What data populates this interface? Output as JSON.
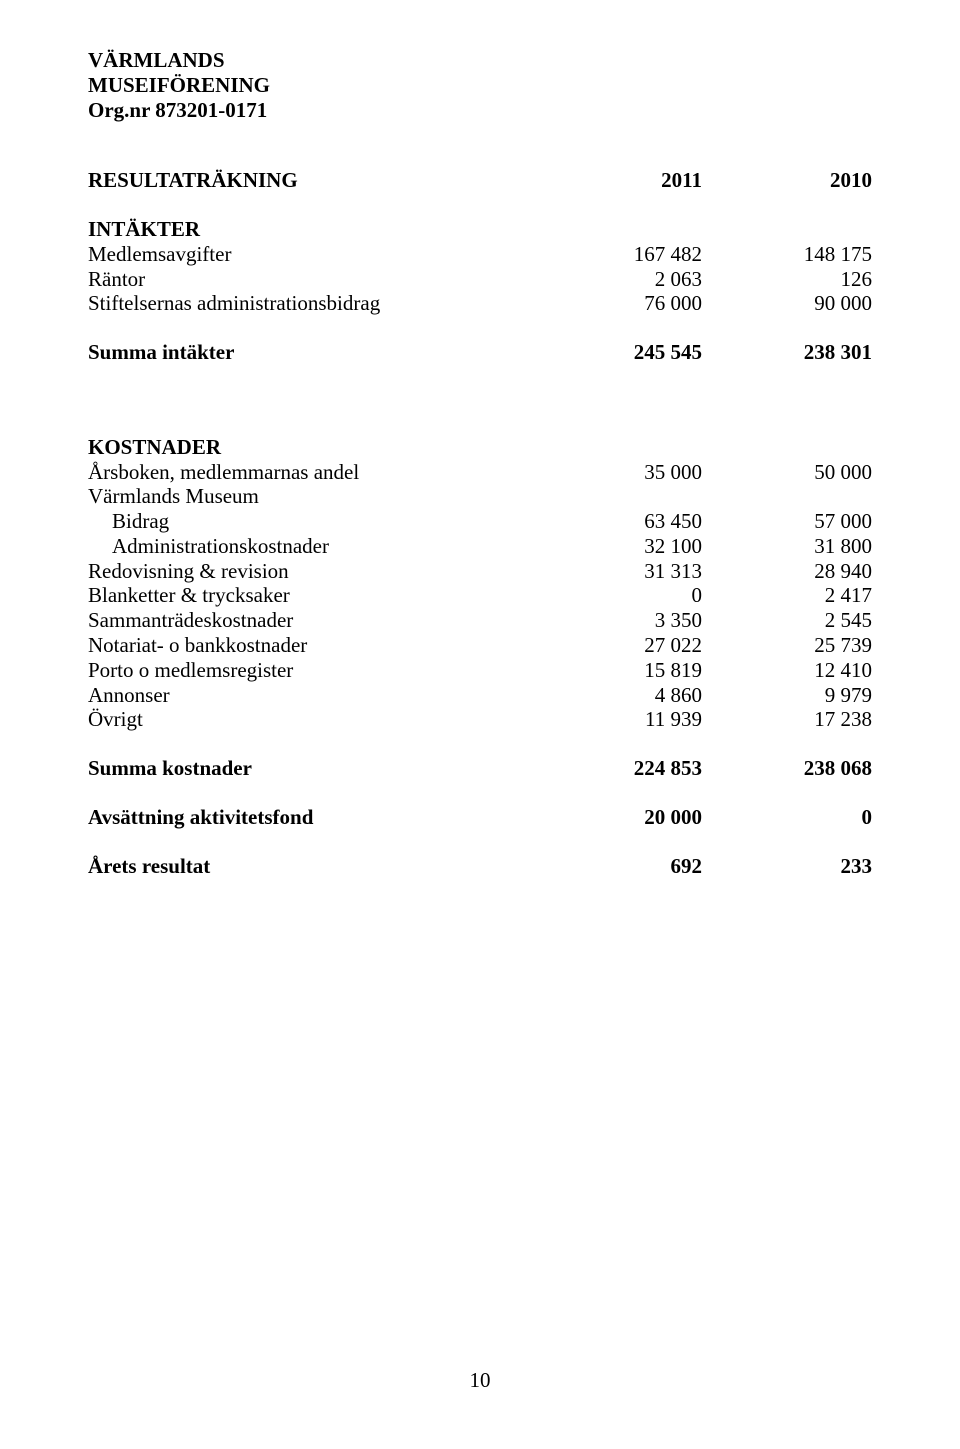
{
  "header": {
    "line1": "VÄRMLANDS",
    "line2": "MUSEIFÖRENING",
    "line3": "Org.nr 873201-0171"
  },
  "title": {
    "label": "RESULTATRÄKNING",
    "col1": "2011",
    "col2": "2010"
  },
  "intakter": {
    "head": "INTÄKTER",
    "rows": [
      {
        "label": "Medlemsavgifter",
        "c1": "167 482",
        "c2": "148 175"
      },
      {
        "label": "Räntor",
        "c1": "2 063",
        "c2": "126"
      },
      {
        "label": "Stiftelsernas administrationsbidrag",
        "c1": "76 000",
        "c2": "90 000"
      }
    ],
    "sum": {
      "label": "Summa intäkter",
      "c1": "245 545",
      "c2": "238 301"
    }
  },
  "kostnader": {
    "head": "KOSTNADER",
    "rows": [
      {
        "label": "Årsboken, medlemmarnas andel",
        "c1": "35 000",
        "c2": "50 000",
        "indent": false
      },
      {
        "label": "Värmlands Museum",
        "c1": "",
        "c2": "",
        "indent": false
      },
      {
        "label": "Bidrag",
        "c1": "63 450",
        "c2": "57 000",
        "indent": true
      },
      {
        "label": "Administrationskostnader",
        "c1": "32 100",
        "c2": "31 800",
        "indent": true
      },
      {
        "label": "Redovisning & revision",
        "c1": "31 313",
        "c2": "28 940",
        "indent": false
      },
      {
        "label": "Blanketter & trycksaker",
        "c1": "0",
        "c2": "2 417",
        "indent": false
      },
      {
        "label": "Sammanträdeskostnader",
        "c1": "3 350",
        "c2": "2 545",
        "indent": false
      },
      {
        "label": "Notariat- o bankkostnader",
        "c1": "27 022",
        "c2": "25 739",
        "indent": false
      },
      {
        "label": "Porto o medlemsregister",
        "c1": "15 819",
        "c2": "12 410",
        "indent": false
      },
      {
        "label": "Annonser",
        "c1": "4 860",
        "c2": "9 979",
        "indent": false
      },
      {
        "label": "Övrigt",
        "c1": "11 939",
        "c2": "17 238",
        "indent": false
      }
    ],
    "sum": {
      "label": "Summa kostnader",
      "c1": "224 853",
      "c2": "238 068"
    }
  },
  "avsattning": {
    "label": "Avsättning aktivitetsfond",
    "c1": "20 000",
    "c2": "0"
  },
  "resultat": {
    "label": "Årets resultat",
    "c1": "692",
    "c2": "233"
  },
  "pageNumber": "10"
}
